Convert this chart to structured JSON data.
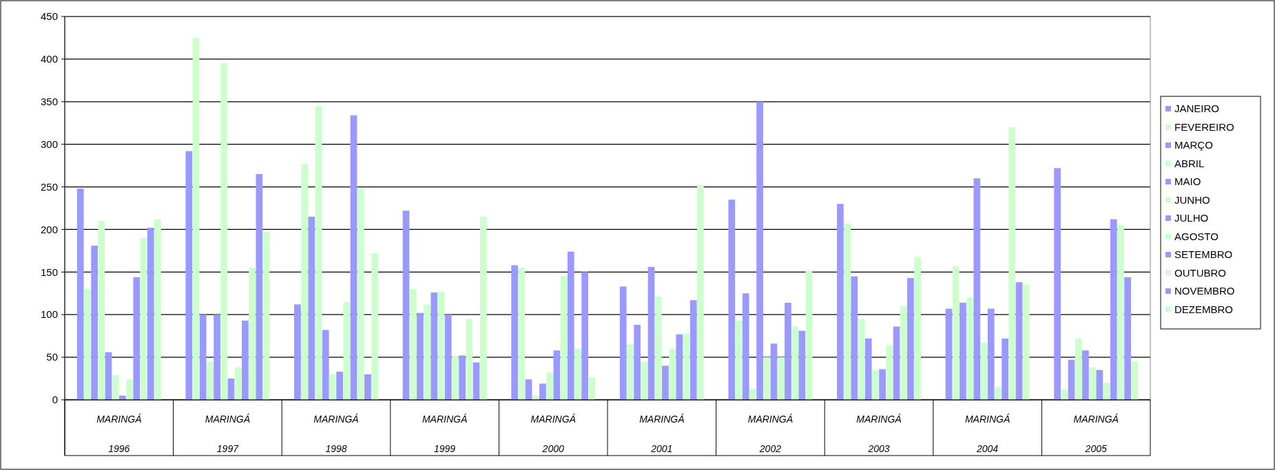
{
  "chart_data": {
    "type": "bar",
    "categories": [
      "MARINGÁ 1996",
      "MARINGÁ 1997",
      "MARINGÁ 1998",
      "MARINGÁ 1999",
      "MARINGÁ 2000",
      "MARINGÁ 2001",
      "MARINGÁ 2002",
      "MARINGÁ 2003",
      "MARINGÁ 2004",
      "MARINGÁ 2005"
    ],
    "series": [
      {
        "name": "JANEIRO",
        "color": "#9999ff",
        "values": [
          248,
          292,
          112,
          222,
          158,
          133,
          235,
          230,
          107,
          272
        ]
      },
      {
        "name": "FEVEREIRO",
        "color": "#ccffcc",
        "values": [
          130,
          425,
          277,
          130,
          155,
          65,
          93,
          207,
          157,
          12
        ]
      },
      {
        "name": "MARÇO",
        "color": "#9999ff",
        "values": [
          181,
          100,
          215,
          102,
          24,
          88,
          125,
          145,
          114,
          47
        ]
      },
      {
        "name": "ABRIL",
        "color": "#ccffcc",
        "values": [
          210,
          45,
          345,
          112,
          5,
          45,
          13,
          95,
          120,
          72
        ]
      },
      {
        "name": "MAIO",
        "color": "#9999ff",
        "values": [
          56,
          100,
          82,
          126,
          19,
          156,
          350,
          72,
          260,
          58
        ]
      },
      {
        "name": "JUNHO",
        "color": "#ccffcc",
        "values": [
          29,
          395,
          30,
          127,
          32,
          121,
          50,
          35,
          67,
          38
        ]
      },
      {
        "name": "JULHO",
        "color": "#9999ff",
        "values": [
          5,
          25,
          33,
          100,
          58,
          40,
          66,
          36,
          107,
          35
        ]
      },
      {
        "name": "AGOSTO",
        "color": "#ccffcc",
        "values": [
          24,
          38,
          115,
          52,
          145,
          60,
          50,
          64,
          15,
          20
        ]
      },
      {
        "name": "SETEMBRO",
        "color": "#9999ff",
        "values": [
          144,
          93,
          334,
          52,
          174,
          77,
          114,
          86,
          72,
          212
        ]
      },
      {
        "name": "OUTUBRO",
        "color": "#ccffcc",
        "values": [
          190,
          155,
          248,
          95,
          60,
          78,
          86,
          110,
          320,
          205
        ]
      },
      {
        "name": "NOVEMBRO",
        "color": "#9999ff",
        "values": [
          202,
          265,
          30,
          44,
          150,
          117,
          81,
          143,
          138,
          144
        ]
      },
      {
        "name": "DEZEMBRO",
        "color": "#ccffcc",
        "values": [
          212,
          197,
          172,
          215,
          26,
          252,
          152,
          167,
          135,
          45
        ]
      }
    ],
    "ylim": [
      0,
      450
    ],
    "yticks": [
      0,
      50,
      100,
      150,
      200,
      250,
      300,
      350,
      400,
      450
    ],
    "grid": "y",
    "legend": "right"
  }
}
